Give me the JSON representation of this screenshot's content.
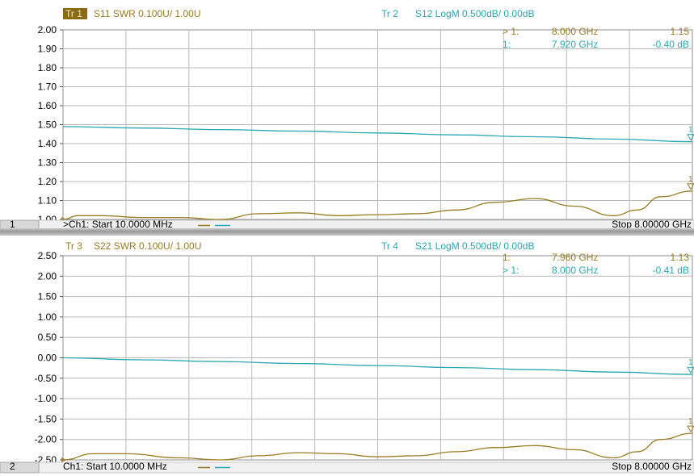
{
  "colors": {
    "trace_gold": "#9a7b22",
    "trace_cyan": "#2aa7b3",
    "grid": "#b9b9b9",
    "text": "#000000",
    "tr_badge_bg": "#8a6a12"
  },
  "chart_data": [
    {
      "type": "line",
      "channel_number": "1",
      "traces": [
        {
          "id": "Tr 1",
          "param": "S11 SWR 0.100U/ 1.00U",
          "badge": "Tr 1",
          "color": "#9a7b22"
        },
        {
          "id": "Tr 2",
          "param": "S12 LogM 0.500dB/ 0.00dB",
          "color": "#2aa7b3"
        }
      ],
      "y_ticks": [
        "2.00",
        "1.90",
        "1.80",
        "1.70",
        "1.60",
        "1.50",
        "1.40",
        "1.30",
        "1.20",
        "1.10",
        "1.00"
      ],
      "ylim": [
        1.0,
        2.0
      ],
      "xlim": [
        0.01,
        8.0
      ],
      "x_unit": "GHz",
      "grid": true,
      "markers": [
        {
          "prefix": "> 1:",
          "freq": "8.000 GHz",
          "value": "1.15",
          "color": "#9a7b22"
        },
        {
          "prefix": "1:",
          "freq": "7.920 GHz",
          "value": "-0.40 dB",
          "color": "#2aa7b3"
        }
      ],
      "series": [
        {
          "name": "S11 SWR",
          "color": "#9a7b22",
          "x": [
            0.01,
            0.2,
            0.5,
            1.0,
            1.5,
            2.0,
            2.5,
            3.0,
            3.5,
            4.0,
            4.5,
            5.0,
            5.5,
            6.0,
            6.5,
            7.0,
            7.3,
            7.6,
            8.0
          ],
          "y": [
            1.0,
            1.02,
            1.02,
            1.01,
            1.01,
            1.0,
            1.03,
            1.035,
            1.02,
            1.025,
            1.03,
            1.05,
            1.09,
            1.11,
            1.07,
            1.02,
            1.05,
            1.12,
            1.15
          ]
        },
        {
          "name": "S12 LogM",
          "color": "#2aa7b3",
          "x": [
            0.01,
            1.0,
            2.0,
            3.0,
            4.0,
            5.0,
            6.0,
            7.0,
            8.0
          ],
          "y_db": [
            0.0,
            -0.04,
            -0.08,
            -0.12,
            -0.17,
            -0.22,
            -0.27,
            -0.33,
            -0.4
          ]
        }
      ],
      "footer": {
        "start": ">Ch1: Start  10.0000 MHz",
        "stop": "Stop  8.00000 GHz"
      }
    },
    {
      "type": "line",
      "channel_number": "2",
      "traces": [
        {
          "id": "Tr 3",
          "param": "S22 SWR 0.100U/ 1.00U",
          "color": "#9a7b22"
        },
        {
          "id": "Tr 4",
          "param": "S21 LogM 0.500dB/ 0.00dB",
          "color": "#2aa7b3"
        }
      ],
      "y_ticks": [
        "2.50",
        "2.00",
        "1.50",
        "1.00",
        "0.50",
        "0.00",
        "-0.50",
        "-1.00",
        "-1.50",
        "-2.00",
        "-2.50"
      ],
      "ylim": [
        -2.5,
        2.5
      ],
      "xlim": [
        0.01,
        8.0
      ],
      "x_unit": "GHz",
      "grid": true,
      "markers": [
        {
          "prefix": "1:",
          "freq": "7.960 GHz",
          "value": "1.13",
          "color": "#9a7b22"
        },
        {
          "prefix": "> 1:",
          "freq": "8.000 GHz",
          "value": "-0.41 dB",
          "color": "#2aa7b3"
        }
      ],
      "series": [
        {
          "name": "S22 SWR",
          "color": "#9a7b22",
          "x": [
            0.01,
            0.4,
            0.8,
            1.5,
            2.0,
            2.5,
            3.0,
            3.5,
            4.0,
            4.5,
            5.0,
            5.5,
            6.0,
            6.5,
            7.0,
            7.3,
            7.6,
            8.0
          ],
          "y_swr": [
            1.0,
            1.03,
            1.03,
            1.01,
            1.0,
            1.02,
            1.035,
            1.03,
            1.015,
            1.02,
            1.04,
            1.06,
            1.07,
            1.05,
            1.01,
            1.04,
            1.1,
            1.13
          ]
        },
        {
          "name": "S21 LogM",
          "color": "#2aa7b3",
          "x": [
            0.01,
            1.0,
            2.0,
            3.0,
            4.0,
            5.0,
            6.0,
            7.0,
            8.0
          ],
          "y": [
            0.0,
            -0.05,
            -0.09,
            -0.14,
            -0.19,
            -0.24,
            -0.29,
            -0.35,
            -0.41
          ]
        }
      ],
      "footer": {
        "start": "Ch1: Start  10.0000 MHz",
        "stop": "Stop  8.00000 GHz"
      }
    }
  ]
}
